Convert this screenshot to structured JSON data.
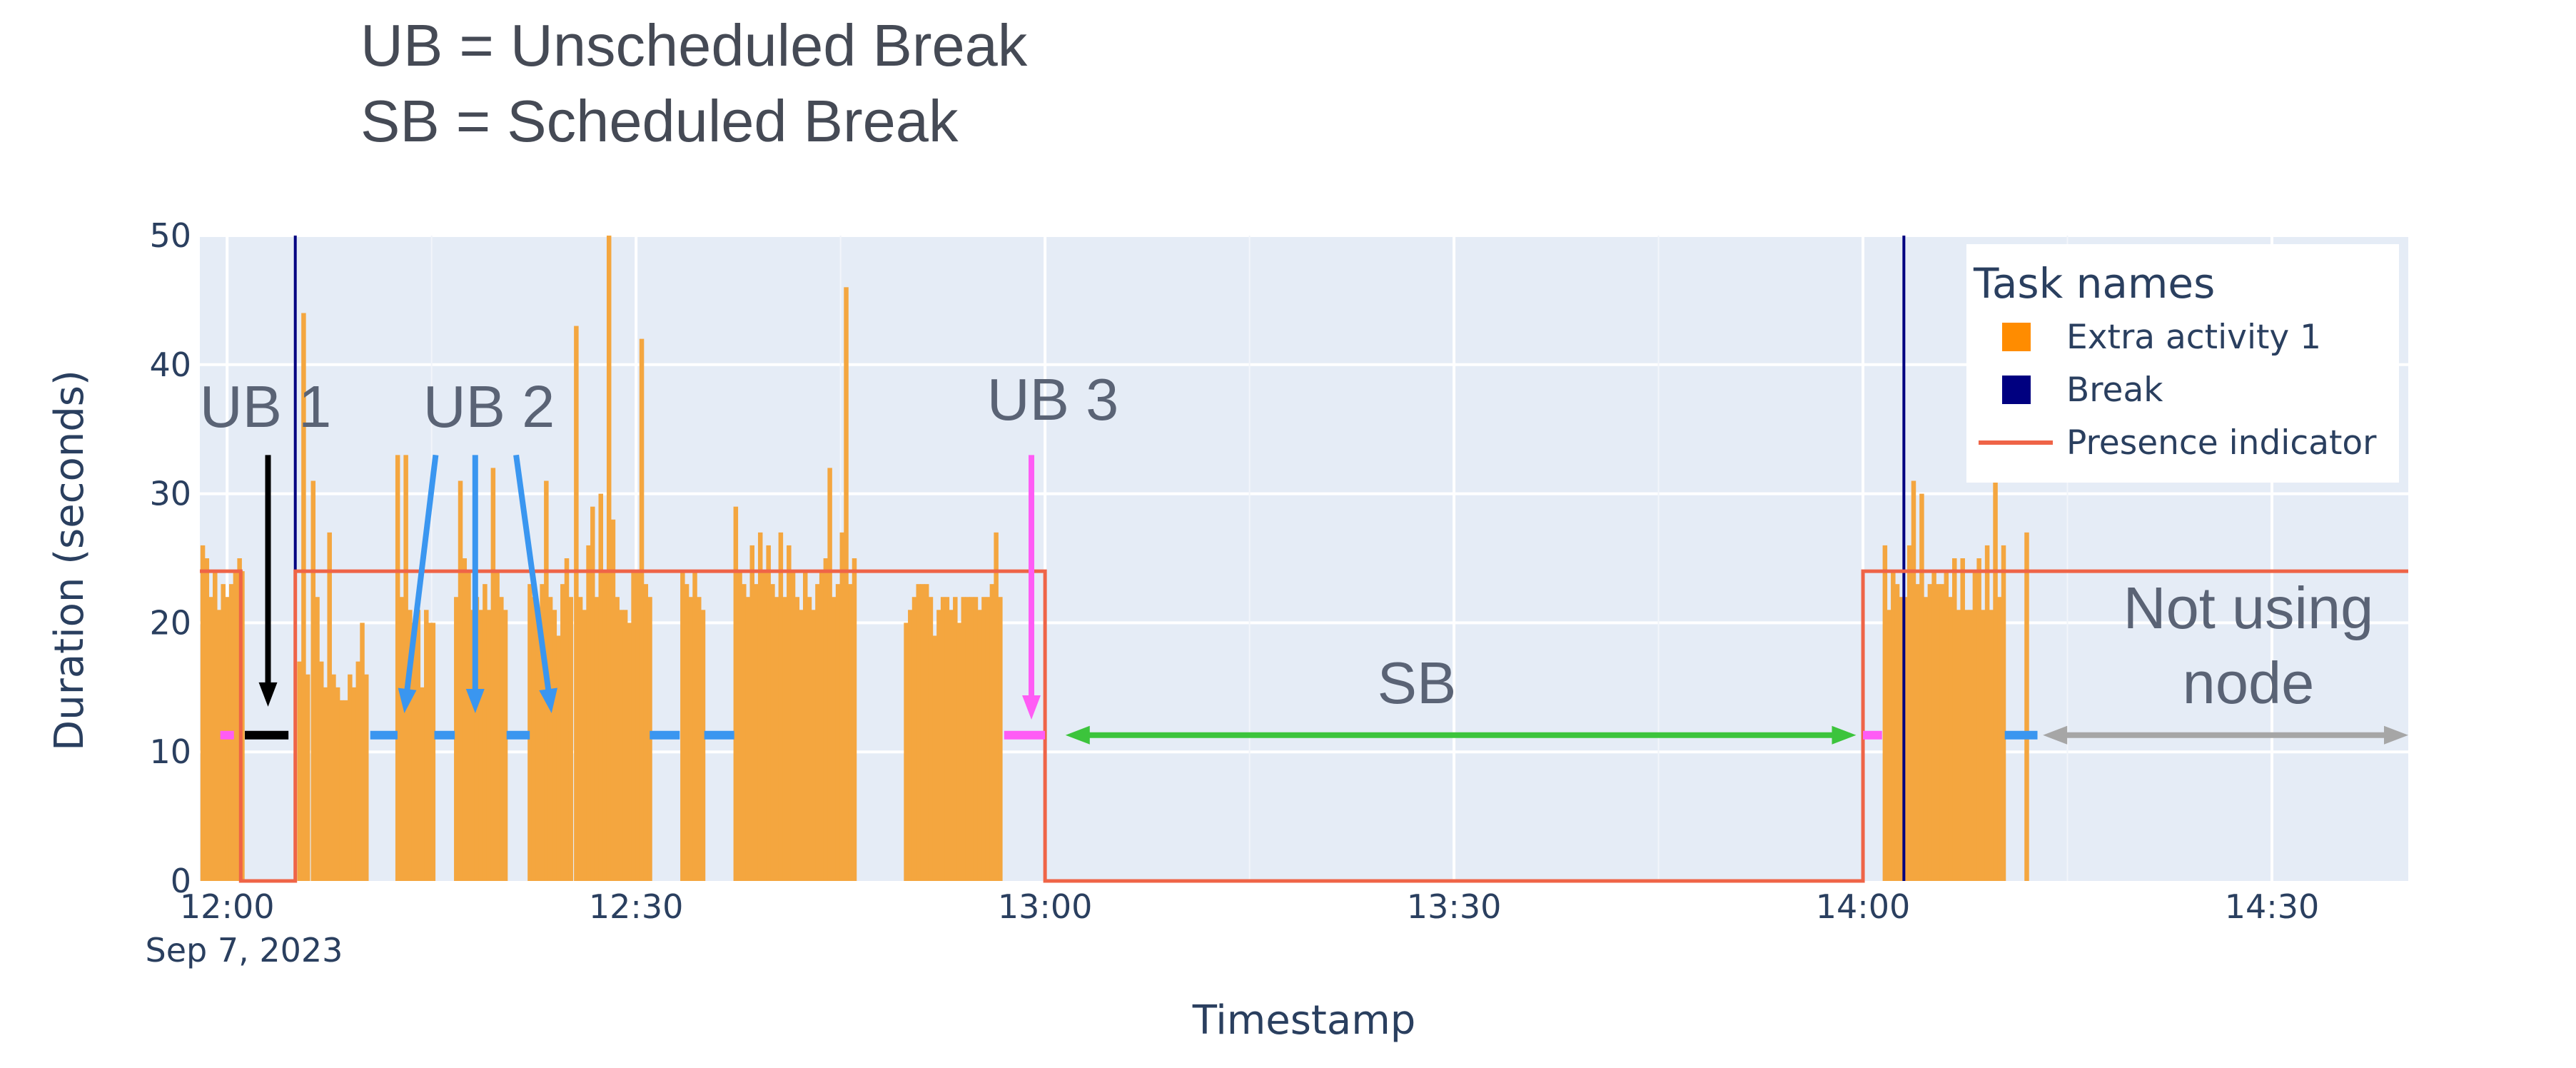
{
  "header": {
    "line1": "UB = Unscheduled Break",
    "line2": "SB = Scheduled Break"
  },
  "chart_data": {
    "type": "bar",
    "xlabel": "Timestamp",
    "ylabel": "Duration (seconds)",
    "x_range": [
      "2023-09-07 11:58",
      "2023-09-07 14:40"
    ],
    "ylim": [
      0,
      50
    ],
    "x_ticks": [
      "12:00",
      "12:30",
      "13:00",
      "13:30",
      "14:00",
      "14:30"
    ],
    "x_date_label": "Sep 7, 2023",
    "y_ticks": [
      "0",
      "10",
      "20",
      "30",
      "40",
      "50"
    ],
    "grid": true,
    "legend": {
      "title": "Task names",
      "placement": "top-right",
      "items": [
        {
          "name": "Extra activity 1",
          "color": "#ff8c00",
          "kind": "square"
        },
        {
          "name": "Break",
          "color": "#000080",
          "kind": "square"
        },
        {
          "name": "Presence indicator",
          "color": "#ef6447",
          "kind": "line"
        }
      ]
    },
    "colors": {
      "activity": "#f4a63f",
      "break": "#000080",
      "presence": "#ef6447",
      "plot_bg": "#e5ecf6",
      "ub1": "#000000",
      "ub2": "#3a96f0",
      "ub3": "#ff5cf5",
      "sb": "#3cc43c",
      "not_using": "#a6a6a6"
    },
    "break_markers": [
      "12:05",
      "14:03"
    ],
    "presence_steps": [
      [
        "11:58",
        24
      ],
      [
        "12:01",
        0
      ],
      [
        "12:05",
        24
      ],
      [
        "13:00",
        0
      ],
      [
        "14:00",
        24
      ],
      [
        "14:40",
        24
      ]
    ],
    "series": [
      {
        "name": "Extra activity 1",
        "points": [
          [
            "11:58.2",
            26
          ],
          [
            "11:58.5",
            25
          ],
          [
            "11:58.8",
            22
          ],
          [
            "11:59.1",
            24
          ],
          [
            "11:59.4",
            21
          ],
          [
            "11:59.7",
            23
          ],
          [
            "12:00.0",
            22
          ],
          [
            "12:00.3",
            23
          ],
          [
            "12:00.6",
            24
          ],
          [
            "12:00.9",
            25
          ],
          [
            "12:01.1",
            24
          ],
          [
            "12:05.3",
            17
          ],
          [
            "12:05.6",
            44
          ],
          [
            "12:05.9",
            16
          ],
          [
            "12:06.3",
            31
          ],
          [
            "12:06.6",
            22
          ],
          [
            "12:06.9",
            17
          ],
          [
            "12:07.2",
            15
          ],
          [
            "12:07.5",
            27
          ],
          [
            "12:07.8",
            16
          ],
          [
            "12:08.1",
            15
          ],
          [
            "12:08.4",
            14
          ],
          [
            "12:08.7",
            14
          ],
          [
            "12:09.0",
            16
          ],
          [
            "12:09.3",
            15
          ],
          [
            "12:09.6",
            17
          ],
          [
            "12:09.9",
            20
          ],
          [
            "12:10.2",
            16
          ],
          [
            "12:12.5",
            33
          ],
          [
            "12:12.8",
            22
          ],
          [
            "12:13.1",
            33
          ],
          [
            "12:13.4",
            21
          ],
          [
            "12:13.7",
            20
          ],
          [
            "12:14.0",
            21
          ],
          [
            "12:14.3",
            15
          ],
          [
            "12:14.6",
            21
          ],
          [
            "12:14.9",
            20
          ],
          [
            "12:15.1",
            20
          ],
          [
            "12:16.8",
            22
          ],
          [
            "12:17.1",
            31
          ],
          [
            "12:17.4",
            25
          ],
          [
            "12:17.7",
            24
          ],
          [
            "12:18.0",
            21
          ],
          [
            "12:18.3",
            22
          ],
          [
            "12:18.6",
            21
          ],
          [
            "12:18.9",
            23
          ],
          [
            "12:19.2",
            21
          ],
          [
            "12:19.5",
            32
          ],
          [
            "12:19.8",
            24
          ],
          [
            "12:20.1",
            22
          ],
          [
            "12:20.4",
            21
          ],
          [
            "12:22.2",
            23
          ],
          [
            "12:22.5",
            22
          ],
          [
            "12:22.8",
            20
          ],
          [
            "12:23.1",
            23
          ],
          [
            "12:23.4",
            31
          ],
          [
            "12:23.7",
            22
          ],
          [
            "12:24.0",
            21
          ],
          [
            "12:24.3",
            19
          ],
          [
            "12:24.6",
            23
          ],
          [
            "12:24.9",
            25
          ],
          [
            "12:25.2",
            22
          ],
          [
            "12:25.6",
            43
          ],
          [
            "12:25.9",
            22
          ],
          [
            "12:26.2",
            21
          ],
          [
            "12:26.5",
            26
          ],
          [
            "12:26.8",
            29
          ],
          [
            "12:27.1",
            22
          ],
          [
            "12:27.4",
            30
          ],
          [
            "12:27.7",
            24
          ],
          [
            "12:28.0",
            50
          ],
          [
            "12:28.3",
            28
          ],
          [
            "12:28.6",
            22
          ],
          [
            "12:28.9",
            21
          ],
          [
            "12:29.2",
            21
          ],
          [
            "12:29.5",
            20
          ],
          [
            "12:29.8",
            24
          ],
          [
            "12:30.1",
            24
          ],
          [
            "12:30.4",
            42
          ],
          [
            "12:30.7",
            23
          ],
          [
            "12:31.0",
            22
          ],
          [
            "12:33.4",
            24
          ],
          [
            "12:33.7",
            23
          ],
          [
            "12:34.0",
            22
          ],
          [
            "12:34.3",
            24
          ],
          [
            "12:34.6",
            22
          ],
          [
            "12:34.9",
            21
          ],
          [
            "12:37.3",
            29
          ],
          [
            "12:37.6",
            24
          ],
          [
            "12:37.9",
            23
          ],
          [
            "12:38.2",
            22
          ],
          [
            "12:38.5",
            26
          ],
          [
            "12:38.8",
            23
          ],
          [
            "12:39.1",
            27
          ],
          [
            "12:39.4",
            24
          ],
          [
            "12:39.7",
            26
          ],
          [
            "12:40.0",
            23
          ],
          [
            "12:40.3",
            22
          ],
          [
            "12:40.6",
            27
          ],
          [
            "12:40.9",
            22
          ],
          [
            "12:41.2",
            26
          ],
          [
            "12:41.5",
            24
          ],
          [
            "12:41.8",
            22
          ],
          [
            "12:42.1",
            21
          ],
          [
            "12:42.4",
            24
          ],
          [
            "12:42.7",
            22
          ],
          [
            "12:43.0",
            21
          ],
          [
            "12:43.3",
            23
          ],
          [
            "12:43.6",
            24
          ],
          [
            "12:43.9",
            25
          ],
          [
            "12:44.2",
            32
          ],
          [
            "12:44.5",
            22
          ],
          [
            "12:44.8",
            23
          ],
          [
            "12:45.1",
            27
          ],
          [
            "12:45.4",
            46
          ],
          [
            "12:45.7",
            23
          ],
          [
            "12:46.0",
            25
          ],
          [
            "12:49.8",
            20
          ],
          [
            "12:50.1",
            21
          ],
          [
            "12:50.4",
            22
          ],
          [
            "12:50.7",
            23
          ],
          [
            "12:51.0",
            23
          ],
          [
            "12:51.3",
            23
          ],
          [
            "12:51.6",
            22
          ],
          [
            "12:51.9",
            19
          ],
          [
            "12:52.2",
            21
          ],
          [
            "12:52.5",
            22
          ],
          [
            "12:52.8",
            22
          ],
          [
            "12:53.1",
            21
          ],
          [
            "12:53.4",
            22
          ],
          [
            "12:53.7",
            20
          ],
          [
            "12:54.0",
            22
          ],
          [
            "12:54.3",
            22
          ],
          [
            "12:54.6",
            22
          ],
          [
            "12:54.9",
            22
          ],
          [
            "12:55.2",
            21
          ],
          [
            "12:55.5",
            22
          ],
          [
            "12:55.8",
            22
          ],
          [
            "12:56.1",
            23
          ],
          [
            "12:56.4",
            27
          ],
          [
            "12:56.7",
            22
          ],
          [
            "14:01.6",
            26
          ],
          [
            "14:01.9",
            21
          ],
          [
            "14:02.2",
            24
          ],
          [
            "14:02.5",
            23
          ],
          [
            "14:02.8",
            22
          ],
          [
            "14:03.1",
            22
          ],
          [
            "14:03.4",
            26
          ],
          [
            "14:03.7",
            31
          ],
          [
            "14:04.0",
            23
          ],
          [
            "14:04.3",
            30
          ],
          [
            "14:04.6",
            22
          ],
          [
            "14:04.9",
            23
          ],
          [
            "14:05.2",
            24
          ],
          [
            "14:05.5",
            23
          ],
          [
            "14:05.8",
            23
          ],
          [
            "14:06.1",
            24
          ],
          [
            "14:06.4",
            22
          ],
          [
            "14:06.7",
            25
          ],
          [
            "14:07.0",
            21
          ],
          [
            "14:07.3",
            25
          ],
          [
            "14:07.6",
            21
          ],
          [
            "14:07.9",
            21
          ],
          [
            "14:08.2",
            24
          ],
          [
            "14:08.5",
            25
          ],
          [
            "14:08.8",
            21
          ],
          [
            "14:09.1",
            26
          ],
          [
            "14:09.4",
            21
          ],
          [
            "14:09.7",
            31
          ],
          [
            "14:10.0",
            22
          ],
          [
            "14:10.3",
            26
          ],
          [
            "14:12.0",
            27
          ]
        ]
      }
    ],
    "annotations": [
      {
        "text": "UB 1",
        "color": "#5a6375"
      },
      {
        "text": "UB 2",
        "color": "#5a6375"
      },
      {
        "text": "UB 3",
        "color": "#5a6375"
      },
      {
        "text": "SB",
        "color": "#5a6375"
      },
      {
        "text": "Not using",
        "color": "#5a6375"
      },
      {
        "text": "node",
        "color": "#5a6375"
      }
    ],
    "segments": [
      {
        "kind": "ub3",
        "from": "11:59.5",
        "to": "12:00.5",
        "y": 11.3
      },
      {
        "kind": "ub1",
        "from": "12:01.3",
        "to": "12:04.5",
        "y": 11.3
      },
      {
        "kind": "ub2",
        "from": "12:10.5",
        "to": "12:12.5",
        "y": 11.3
      },
      {
        "kind": "ub2",
        "from": "12:15.2",
        "to": "12:16.7",
        "y": 11.3
      },
      {
        "kind": "ub2",
        "from": "12:20.5",
        "to": "12:22.2",
        "y": 11.3
      },
      {
        "kind": "ub2",
        "from": "12:31.0",
        "to": "12:33.2",
        "y": 11.3
      },
      {
        "kind": "ub2",
        "from": "12:35.0",
        "to": "12:37.2",
        "y": 11.3
      },
      {
        "kind": "ub3",
        "from": "12:57.0",
        "to": "13:00.0",
        "y": 11.3
      },
      {
        "kind": "ub3",
        "from": "14:00.0",
        "to": "14:01.4",
        "y": 11.3
      },
      {
        "kind": "ub2",
        "from": "14:10.4",
        "to": "14:12.8",
        "y": 11.3
      }
    ],
    "arrows": [
      {
        "kind": "ub1",
        "from": [
          "12:03.0",
          33
        ],
        "to": [
          "12:03.0",
          13.5
        ]
      },
      {
        "kind": "ub2",
        "from": [
          "12:15.3",
          33
        ],
        "to": [
          "12:13.0",
          13.0
        ]
      },
      {
        "kind": "ub2",
        "from": [
          "12:18.2",
          33
        ],
        "to": [
          "12:18.2",
          13.0
        ]
      },
      {
        "kind": "ub2",
        "from": [
          "12:21.2",
          33
        ],
        "to": [
          "12:23.8",
          13.0
        ]
      },
      {
        "kind": "ub3",
        "from": [
          "12:59.0",
          33
        ],
        "to": [
          "12:59.0",
          12.5
        ]
      },
      {
        "kind": "sb",
        "from": [
          "13:01.5",
          11.3
        ],
        "to": [
          "13:59.5",
          11.3
        ],
        "double": true
      },
      {
        "kind": "not_using",
        "from": [
          "14:13.2",
          11.3
        ],
        "to": [
          "14:40.0",
          11.3
        ],
        "double": true
      }
    ]
  }
}
